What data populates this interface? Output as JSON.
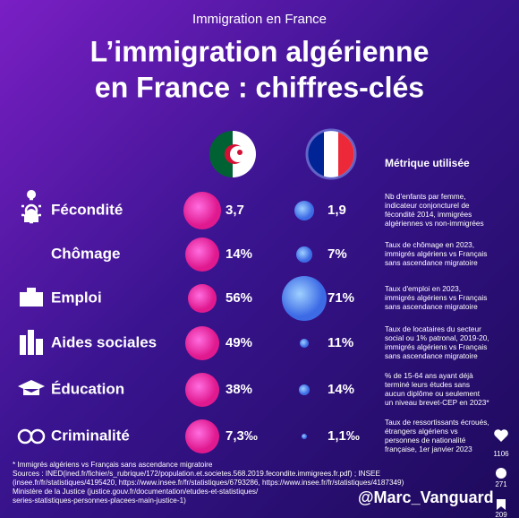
{
  "header": {
    "kicker": "Immigration en France",
    "title_lines": [
      "L’immigration algérienne",
      "en France : chiffres-clés"
    ]
  },
  "metric_header": "Métrique utilisée",
  "rows": [
    {
      "label": "Fécondité",
      "algeria": "3,7",
      "france": "1,9",
      "metric_lines": [
        "Nb d'enfants par femme,",
        "indicateur conjoncturel de",
        "fécondité 2014, immigrées",
        "algériennes vs non-immigrées"
      ]
    },
    {
      "label": "Chômage",
      "algeria": "14%",
      "france": "7%",
      "metric_lines": [
        "Taux de chômage en 2023,",
        "immigrés algériens vs Français",
        "sans ascendance migratoire"
      ]
    },
    {
      "label": "Emploi",
      "algeria": "56%",
      "france": "71%",
      "metric_lines": [
        "Taux d'emploi en 2023,",
        "immigrés algériens vs Français",
        "sans ascendance migratoire"
      ]
    },
    {
      "label": "Aides sociales",
      "algeria": "49%",
      "france": "11%",
      "metric_lines": [
        "Taux de locataires du secteur",
        "social ou 1% patronal, 2019-20,",
        "immigrés algériens vs Français",
        "sans ascendance migratoire"
      ]
    },
    {
      "label": "Éducation",
      "algeria": "38%",
      "france": "14%",
      "metric_lines": [
        "% de 15-64 ans ayant déjà",
        "terminé leurs études sans",
        "aucun diplôme ou seulement",
        "un niveau brevet-CEP en 2023*"
      ]
    },
    {
      "label": "Criminalité",
      "algeria": "7,3‰",
      "france": "1,1‰",
      "metric_lines": [
        "Taux de ressortissants écroués,",
        "étrangers algériens vs",
        "personnes de nationalité",
        "française, 1er janvier 2023"
      ]
    }
  ],
  "footer": {
    "lines": [
      "* Immigrés algériens vs Français sans ascendance migratoire",
      "Sources : INED(ined.fr/fichier/s_rubrique/172/population.et.societes.568.2019.fecondite.immigrees.fr.pdf) ; INSEE",
      "(insee.fr/fr/statistiques/4195420, https://www.insee.fr/fr/statistiques/6793286, https://www.insee.fr/fr/statistiques/4187349)",
      "Ministère de la Justice (justice.gouv.fr/documentation/etudes-et-statistiques/",
      "series-statistiques-personnes-placees-main-justice-1)"
    ],
    "handle": "@Marc_Vanguard"
  },
  "social": {
    "likes": "1106",
    "comments": "271",
    "saves": "209"
  }
}
